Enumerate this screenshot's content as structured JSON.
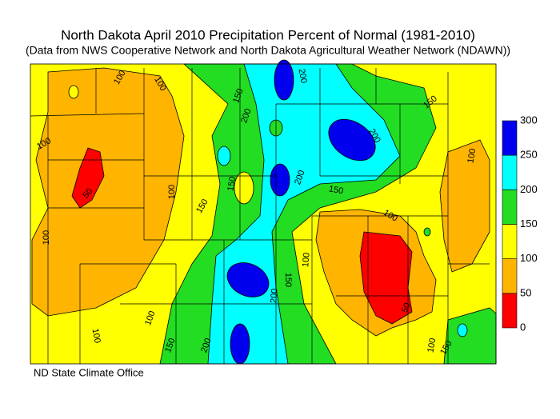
{
  "title": "North Dakota April 2010 Precipitation Percent of Normal (1981-2010)",
  "subtitle": "(Data from NWS Cooperative Network and North Dakota Agricultural Weather Network (NDAWN))",
  "legend": {
    "ticks": [
      0,
      50,
      100,
      150,
      200,
      250,
      300
    ],
    "colors": [
      "#ff0000",
      "#ffb400",
      "#ffff00",
      "#22dd22",
      "#00ffff",
      "#0000ee"
    ]
  },
  "contour_labels": [
    100,
    100,
    150,
    200,
    200,
    150,
    100,
    50,
    100,
    150,
    150,
    200,
    150,
    200,
    100,
    100,
    100,
    100,
    150,
    200,
    100,
    100,
    150,
    200,
    50,
    100,
    150
  ],
  "credit": "ND State Climate Office"
}
